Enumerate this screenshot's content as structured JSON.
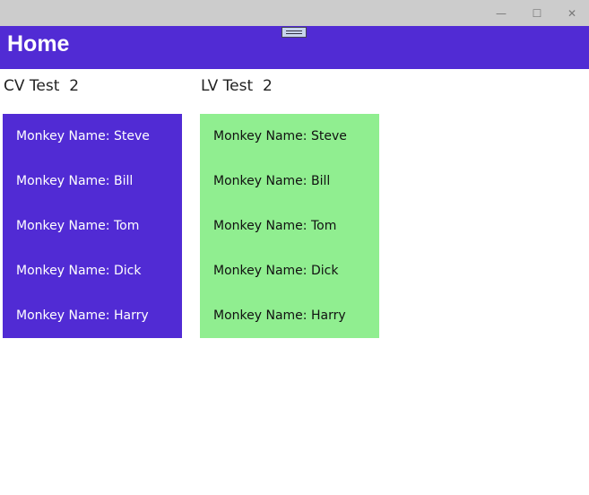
{
  "window": {
    "minimize": "—",
    "maximize": "☐",
    "close": "✕"
  },
  "header": {
    "title": "Home"
  },
  "cv": {
    "label": "CV Test",
    "count": "2",
    "bg": "#512bd4",
    "items": [
      {
        "key": "Monkey Name:",
        "name": "Steve"
      },
      {
        "key": "Monkey Name:",
        "name": "Bill"
      },
      {
        "key": "Monkey Name:",
        "name": "Tom"
      },
      {
        "key": "Monkey Name:",
        "name": "Dick"
      },
      {
        "key": "Monkey Name:",
        "name": "Harry"
      }
    ]
  },
  "lv": {
    "label": "LV Test",
    "count": "2",
    "bg": "#90ee90",
    "items": [
      {
        "key": "Monkey Name:",
        "name": "Steve"
      },
      {
        "key": "Monkey Name:",
        "name": "Bill"
      },
      {
        "key": "Monkey Name:",
        "name": "Tom"
      },
      {
        "key": "Monkey Name:",
        "name": "Dick"
      },
      {
        "key": "Monkey Name:",
        "name": "Harry"
      }
    ]
  }
}
